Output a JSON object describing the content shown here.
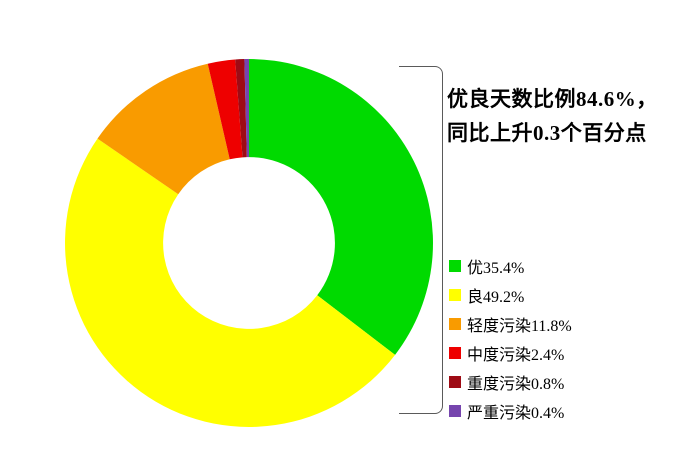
{
  "figure": {
    "annotation_line1": "优良天数比例84.6%，",
    "annotation_line2": "同比上升0.3个百分点"
  },
  "chart_data": {
    "type": "pie",
    "subtype": "donut",
    "unit": "%",
    "categories": [
      "优",
      "良",
      "轻度污染",
      "中度污染",
      "重度污染",
      "严重污染"
    ],
    "values": [
      35.4,
      49.2,
      11.8,
      2.4,
      0.8,
      0.4
    ],
    "colors": [
      "#00DA00",
      "#FFFF00",
      "#F99B00",
      "#EE0000",
      "#9E0B15",
      "#7645AE"
    ],
    "legend_labels": [
      "优35.4%",
      "良49.2%",
      "轻度污染11.8%",
      "中度污染2.4%",
      "重度污染0.8%",
      "严重污染0.4%"
    ],
    "legend_position": "right",
    "start_angle_deg": 0,
    "direction": "clockwise",
    "inner_radius_ratio": 0.467,
    "background": "#ffffff",
    "bracket_color": "#5a5a5a",
    "annotation": "优良天数比例84.6%，同比上升0.3个百分点"
  }
}
